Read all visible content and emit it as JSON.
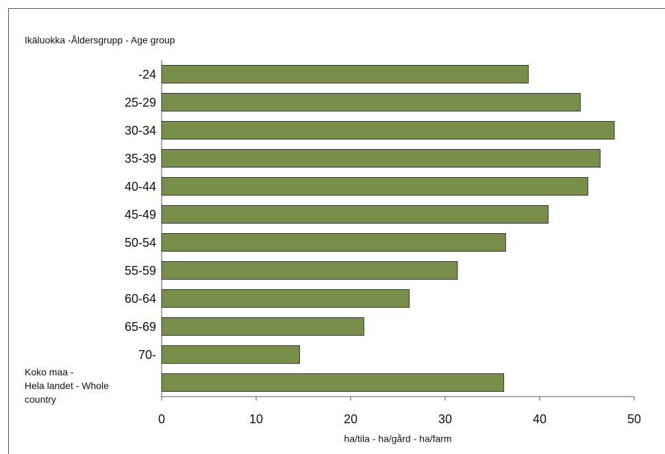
{
  "chart_data": {
    "type": "barh",
    "title": "Ikäluokka -Åldersgrupp - Age group",
    "x_label": "ha/tila - ha/gård - ha/farm",
    "categories": [
      "-24",
      "25-29",
      "30-34",
      "35-39",
      "40-44",
      "45-49",
      "50-54",
      "55-59",
      "60-64",
      "65-69",
      "70-",
      "Koko maa -\nHela landet - Whole\ncountry"
    ],
    "values": [
      38.8,
      44.3,
      47.9,
      46.4,
      45.1,
      40.9,
      36.4,
      31.3,
      26.2,
      21.4,
      14.6,
      36.2
    ],
    "color": "#778f4b",
    "xlim": [
      0,
      50
    ],
    "xticks": [
      0,
      10,
      20,
      30,
      40,
      50
    ],
    "grid": false
  }
}
